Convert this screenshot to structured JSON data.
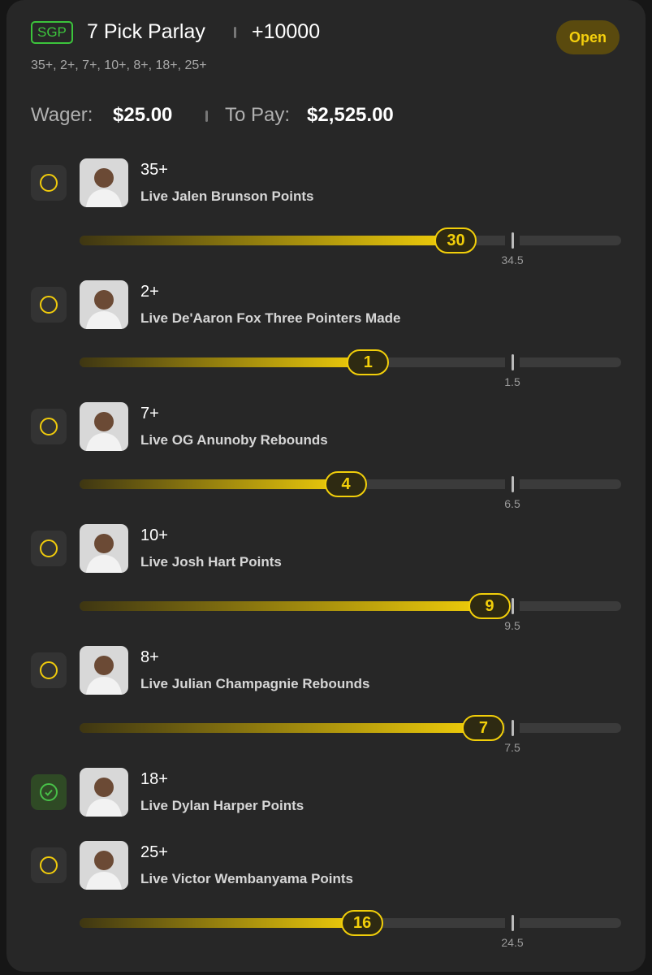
{
  "header": {
    "badge": "SGP",
    "title": "7 Pick Parlay",
    "odds": "+10000",
    "legs": "35+, 2+, 7+, 10+, 8+, 18+, 25+",
    "button": "Open"
  },
  "wager": {
    "wager_label": "Wager:",
    "wager_amount": "$25.00",
    "pay_label": "To Pay:",
    "pay_amount": "$2,525.00"
  },
  "picks": [
    {
      "threshold": "35+",
      "label": "Live Jalen Brunson Points",
      "current": 30,
      "line": 34.5,
      "checked": false
    },
    {
      "threshold": "2+",
      "label": "Live De'Aaron Fox Three Pointers Made",
      "current": 1,
      "line": 1.5,
      "checked": false
    },
    {
      "threshold": "7+",
      "label": "Live OG Anunoby Rebounds",
      "current": 4,
      "line": 6.5,
      "checked": false
    },
    {
      "threshold": "10+",
      "label": "Live Josh Hart Points",
      "current": 9,
      "line": 9.5,
      "checked": false
    },
    {
      "threshold": "8+",
      "label": "Live Julian Champagnie Rebounds",
      "current": 7,
      "line": 7.5,
      "checked": false
    },
    {
      "threshold": "18+",
      "label": "Live Dylan Harper Points",
      "checked": true
    },
    {
      "threshold": "25+",
      "label": "Live Victor Wembanyama Points",
      "current": 16,
      "line": 24.5,
      "checked": false
    }
  ]
}
